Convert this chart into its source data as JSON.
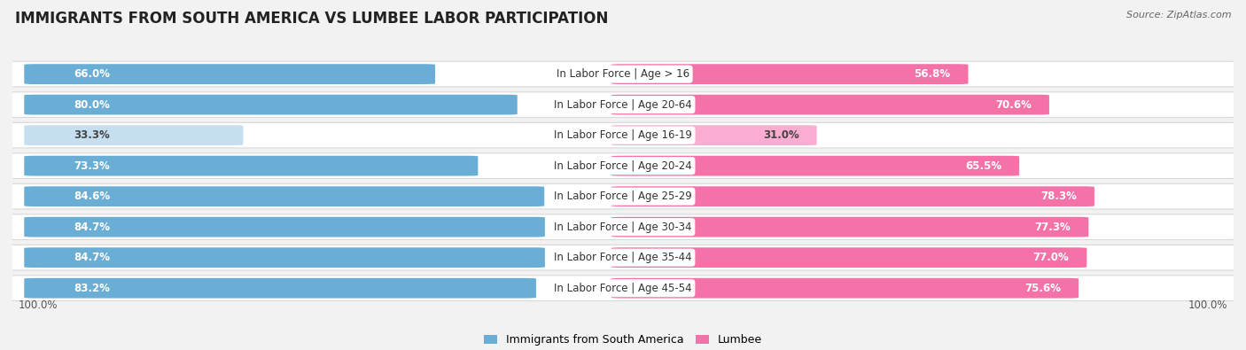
{
  "title": "IMMIGRANTS FROM SOUTH AMERICA VS LUMBEE LABOR PARTICIPATION",
  "source": "Source: ZipAtlas.com",
  "categories": [
    "In Labor Force | Age > 16",
    "In Labor Force | Age 20-64",
    "In Labor Force | Age 16-19",
    "In Labor Force | Age 20-24",
    "In Labor Force | Age 25-29",
    "In Labor Force | Age 30-34",
    "In Labor Force | Age 35-44",
    "In Labor Force | Age 45-54"
  ],
  "left_values": [
    66.0,
    80.0,
    33.3,
    73.3,
    84.6,
    84.7,
    84.7,
    83.2
  ],
  "right_values": [
    56.8,
    70.6,
    31.0,
    65.5,
    78.3,
    77.3,
    77.0,
    75.6
  ],
  "left_color": "#6aaed6",
  "right_color": "#f472a8",
  "left_color_light": "#c6dff0",
  "right_color_light": "#faadd0",
  "left_label": "Immigrants from South America",
  "right_label": "Lumbee",
  "bg_color": "#f2f2f2",
  "row_bg_color": "#ffffff",
  "row_border_color": "#d8d8d8",
  "max_value": 100.0,
  "light_threshold": 50.0,
  "title_fontsize": 12,
  "label_fontsize": 8.5,
  "value_fontsize": 8.5,
  "source_fontsize": 8
}
